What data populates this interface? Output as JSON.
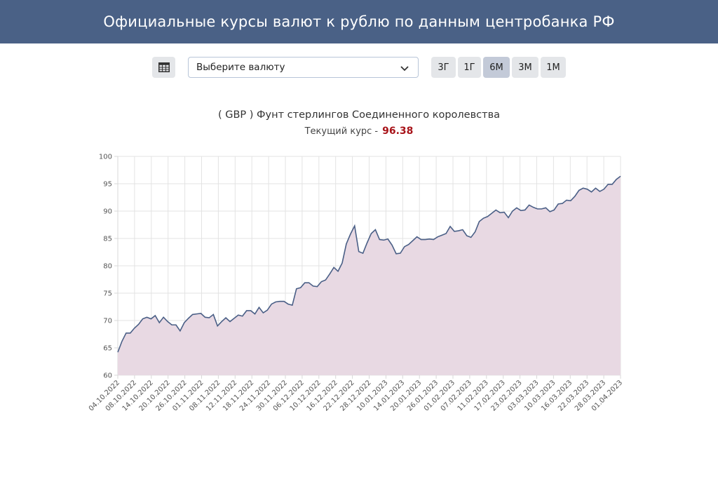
{
  "header": {
    "title": "Официальные курсы валют к рублю по данным центробанка РФ"
  },
  "toolbar": {
    "table_icon": "table-icon",
    "currency_select": {
      "value": "Выберите валюту",
      "icon": "chevron-down-icon"
    },
    "periods": [
      {
        "label": "3Г",
        "active": false
      },
      {
        "label": "1Г",
        "active": false
      },
      {
        "label": "6М",
        "active": true
      },
      {
        "label": "3М",
        "active": false
      },
      {
        "label": "1М",
        "active": false
      }
    ]
  },
  "chart": {
    "title": "( GBP ) Фунт стерлингов Соединенного королевства",
    "current_label": "Текущий курс -",
    "current_value": "96.38"
  },
  "chart_data": {
    "type": "area",
    "ylim": [
      60,
      100
    ],
    "yticks": [
      "60",
      "65",
      "70",
      "75",
      "80",
      "85",
      "90",
      "95",
      "100"
    ],
    "grid": true,
    "line_color": "#4a5f86",
    "fill_color": "#e8d9e3",
    "xtick_labels": [
      "04.10.2022",
      "08.10.2022",
      "14.10.2022",
      "20.10.2022",
      "26.10.2022",
      "01.11.2022",
      "08.11.2022",
      "12.11.2022",
      "18.11.2022",
      "24.11.2022",
      "30.11.2022",
      "06.12.2022",
      "10.12.2022",
      "16.12.2022",
      "22.12.2022",
      "28.12.2022",
      "10.01.2023",
      "14.01.2023",
      "20.01.2023",
      "26.01.2023",
      "01.02.2023",
      "07.02.2023",
      "11.02.2023",
      "17.02.2023",
      "23.02.2023",
      "03.03.2023",
      "10.03.2023",
      "16.03.2023",
      "22.03.2023",
      "28.03.2023",
      "01.04.2023"
    ],
    "values": [
      64.2,
      66.2,
      67.7,
      67.7,
      68.6,
      69.3,
      70.3,
      70.6,
      70.3,
      70.9,
      69.6,
      70.6,
      69.8,
      69.2,
      69.2,
      68.1,
      69.6,
      70.4,
      71.1,
      71.2,
      71.3,
      70.6,
      70.5,
      71.1,
      69.0,
      69.8,
      70.5,
      69.8,
      70.4,
      71.0,
      70.8,
      71.8,
      71.8,
      71.2,
      72.4,
      71.4,
      71.9,
      73.0,
      73.4,
      73.5,
      73.5,
      73.0,
      72.8,
      75.8,
      76.0,
      76.9,
      76.9,
      76.3,
      76.2,
      77.1,
      77.4,
      78.5,
      79.7,
      79.0,
      80.5,
      84.0,
      85.8,
      87.3,
      82.6,
      82.3,
      84.2,
      85.9,
      86.6,
      84.8,
      84.7,
      84.9,
      83.8,
      82.2,
      82.3,
      83.5,
      83.9,
      84.6,
      85.3,
      84.8,
      84.8,
      84.9,
      84.8,
      85.3,
      85.6,
      85.9,
      87.2,
      86.3,
      86.4,
      86.6,
      85.5,
      85.2,
      86.2,
      88.1,
      88.7,
      89.0,
      89.6,
      90.2,
      89.7,
      89.8,
      88.8,
      90.0,
      90.6,
      90.1,
      90.2,
      91.1,
      90.7,
      90.4,
      90.4,
      90.6,
      89.9,
      90.2,
      91.3,
      91.4,
      92.0,
      91.9,
      92.7,
      93.8,
      94.2,
      94.0,
      93.5,
      94.2,
      93.6,
      94.0,
      94.9,
      94.9,
      95.8,
      96.38
    ]
  }
}
